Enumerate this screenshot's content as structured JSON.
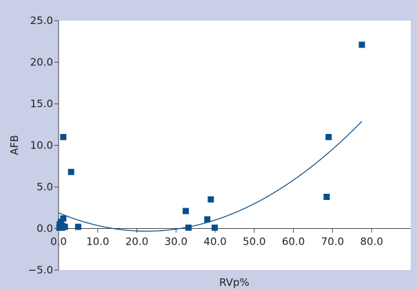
{
  "colors": {
    "frame": "#c9cfe6",
    "plot_bg": "#ffffff",
    "axis": "#444444",
    "marker": "#0a4e8c",
    "fit_line": "#0a4e8c"
  },
  "chart_data": {
    "type": "scatter",
    "title": "",
    "xlabel": "RVp%",
    "ylabel": "AFB",
    "xlim": [
      0,
      90
    ],
    "ylim": [
      -5,
      25
    ],
    "x_ticks": [
      0,
      10,
      20,
      30,
      40,
      50,
      60,
      70,
      80
    ],
    "x_tick_labels": [
      "0.0",
      "10.0",
      "20.0",
      "30.0",
      "40.0",
      "50.0",
      "60.0",
      "70.0",
      "80.0"
    ],
    "y_ticks": [
      -5,
      0,
      5,
      10,
      15,
      20,
      25
    ],
    "y_tick_labels": [
      "−5.0",
      "0.0",
      "5.0",
      "10.0",
      "15.0",
      "20.0",
      "25.0"
    ],
    "grid": false,
    "legend": "none",
    "series": [
      {
        "type": "scatter",
        "marker": "square",
        "points": [
          [
            0.2,
            0.1
          ],
          [
            0.5,
            0.2
          ],
          [
            0.9,
            0.1
          ],
          [
            0.3,
            0.5
          ],
          [
            1.0,
            0.3
          ],
          [
            0.6,
            0.8
          ],
          [
            1.2,
            1.2
          ],
          [
            1.6,
            0.2
          ],
          [
            1.2,
            11.0
          ],
          [
            3.2,
            6.8
          ],
          [
            5.0,
            0.2
          ],
          [
            32.5,
            2.1
          ],
          [
            33.2,
            0.1
          ],
          [
            38.0,
            1.1
          ],
          [
            38.9,
            3.5
          ],
          [
            39.9,
            0.1
          ],
          [
            68.5,
            3.8
          ],
          [
            69.0,
            11.0
          ],
          [
            77.5,
            22.1
          ]
        ]
      },
      {
        "type": "fit_curve",
        "model": "quadratic",
        "x_range": [
          0,
          77.5
        ],
        "coefficients": [
          1.885,
          -0.1962,
          0.004363
        ]
      }
    ]
  }
}
